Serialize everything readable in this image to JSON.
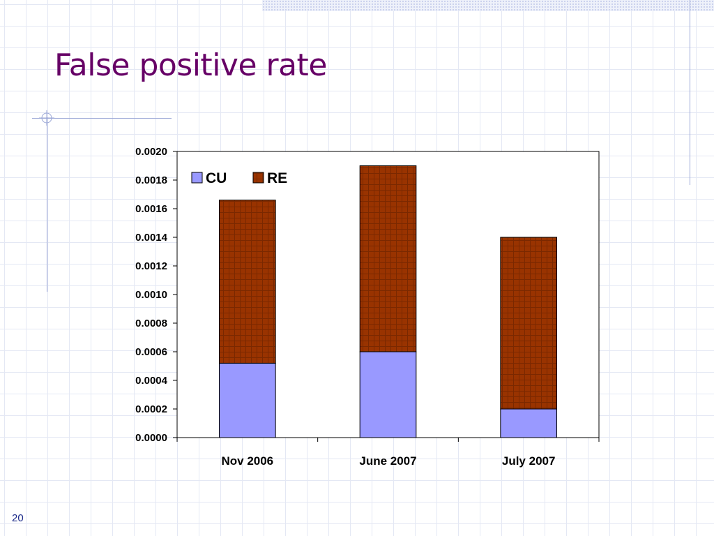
{
  "slide": {
    "title": "False positive rate",
    "number": "20"
  },
  "chart_data": {
    "type": "bar",
    "stacked": true,
    "categories": [
      "Nov 2006",
      "June 2007",
      "July 2007"
    ],
    "series": [
      {
        "name": "CU",
        "color": "#9999ff",
        "values": [
          0.00052,
          0.0006,
          0.0002
        ]
      },
      {
        "name": "RE",
        "color": "#993300",
        "values": [
          0.00114,
          0.0013,
          0.0012
        ]
      }
    ],
    "ylim": [
      0,
      0.002
    ],
    "yticks": [
      "0.0000",
      "0.0002",
      "0.0004",
      "0.0006",
      "0.0008",
      "0.0010",
      "0.0012",
      "0.0014",
      "0.0016",
      "0.0018",
      "0.0020"
    ],
    "legend": "top-left",
    "grid": false
  }
}
